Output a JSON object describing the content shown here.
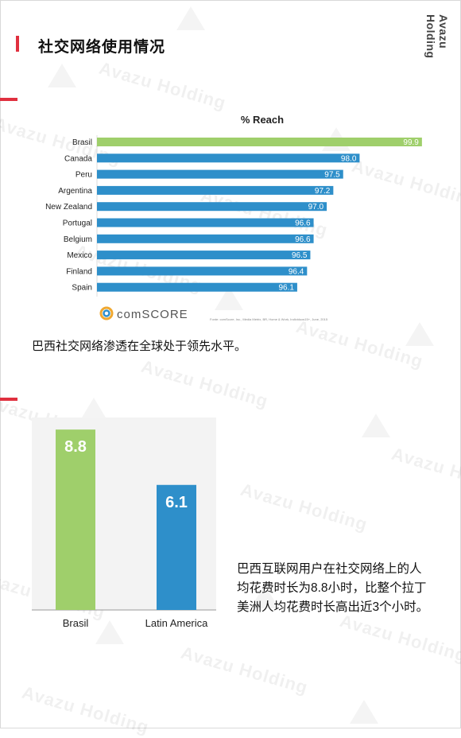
{
  "page": {
    "title": "社交网络使用情况",
    "brand_vertical": "Avazu Holding",
    "watermark_text": "Avazu Holding",
    "accent_color": "#e0303f"
  },
  "chart_data": [
    {
      "type": "bar",
      "orientation": "horizontal",
      "title": "% Reach",
      "categories": [
        "Brasil",
        "Canada",
        "Peru",
        "Argentina",
        "New Zealand",
        "Portugal",
        "Belgium",
        "Mexico",
        "Finland",
        "Spain"
      ],
      "values": [
        99.9,
        98.0,
        97.5,
        97.2,
        97.0,
        96.6,
        96.6,
        96.5,
        96.4,
        96.1
      ],
      "value_labels": [
        "99.9",
        "98.0",
        "97.5",
        "97.2",
        "97.0",
        "96.6",
        "96.6",
        "96.5",
        "96.4",
        "96.1"
      ],
      "highlight_color": "#9fcf6b",
      "bar_color": "#2e8fca",
      "source_logo": "comSCORE",
      "source_note": "Fonte: comScore, Inc., Media Metrix, BR, Home & Work, Individuos15+, June, 2015"
    },
    {
      "type": "bar",
      "orientation": "vertical",
      "categories": [
        "Brasil",
        "Latin America"
      ],
      "values": [
        8.8,
        6.1
      ],
      "value_labels": [
        "8.8",
        "6.1"
      ],
      "colors": [
        "#9fcf6b",
        "#2e8fca"
      ]
    }
  ],
  "captions": {
    "reach": "巴西社交网络渗透在全球处于领先水平。",
    "hours_lines": [
      "巴西互联网用户在社交网络上的人",
      "均花费时长为8.8小时，比整个拉丁",
      "美洲人均花费时长高出近3个小时。"
    ]
  }
}
